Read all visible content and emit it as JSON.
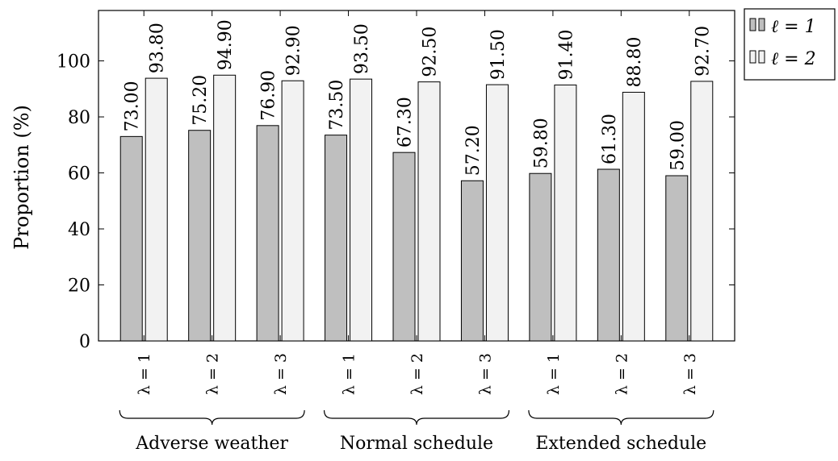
{
  "chart_data": {
    "type": "bar",
    "ylabel": "Proportion (%)",
    "xlabel": "",
    "ylim": [
      0,
      118
    ],
    "yticks": [
      0,
      20,
      40,
      60,
      80,
      100
    ],
    "categories": [
      "λ = 1",
      "λ = 2",
      "λ = 3",
      "λ = 1",
      "λ = 2",
      "λ = 3",
      "λ = 1",
      "λ = 2",
      "λ = 3"
    ],
    "groups": [
      {
        "label": "Adverse weather",
        "categories": [
          0,
          1,
          2
        ]
      },
      {
        "label": "Normal schedule",
        "categories": [
          3,
          4,
          5
        ]
      },
      {
        "label": "Extended schedule",
        "categories": [
          6,
          7,
          8
        ]
      }
    ],
    "series": [
      {
        "name": "ℓ = 1",
        "color": "#bfbfbf",
        "values": [
          73.0,
          75.2,
          76.9,
          73.5,
          67.3,
          57.2,
          59.8,
          61.3,
          59.0
        ],
        "labels": [
          "73.00",
          "75.20",
          "76.90",
          "73.50",
          "67.30",
          "57.20",
          "59.80",
          "61.30",
          "59.00"
        ]
      },
      {
        "name": "ℓ = 2",
        "color": "#f2f2f2",
        "values": [
          93.8,
          94.9,
          92.9,
          93.5,
          92.5,
          91.5,
          91.4,
          88.8,
          92.7
        ],
        "labels": [
          "93.80",
          "94.90",
          "92.90",
          "93.50",
          "92.50",
          "91.50",
          "91.40",
          "88.80",
          "92.70"
        ]
      }
    ],
    "legend_position": "outside-top-right",
    "grid": false
  }
}
